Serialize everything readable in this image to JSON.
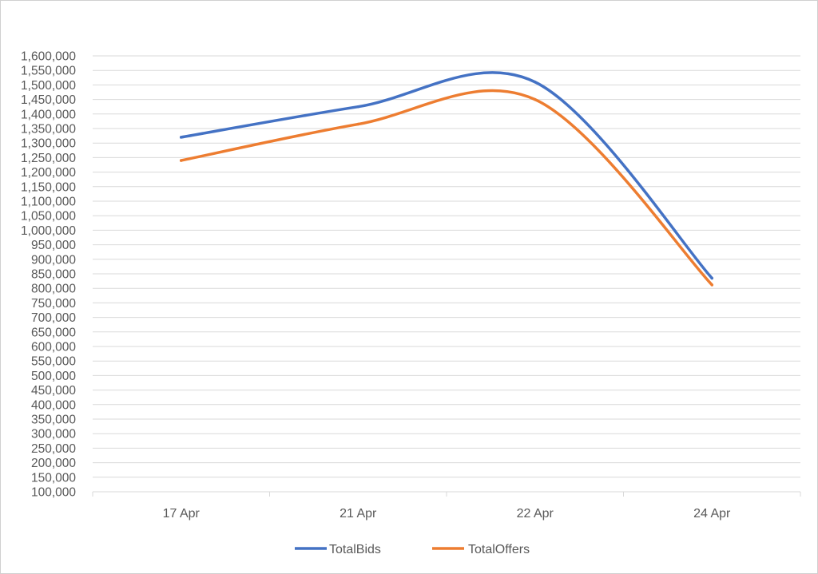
{
  "chart_data": {
    "type": "line",
    "title": "",
    "xlabel": "",
    "ylabel": "",
    "categories": [
      "17 Apr",
      "21 Apr",
      "22 Apr",
      "24 Apr"
    ],
    "series": [
      {
        "name": "TotalBids",
        "color": "#4472C4",
        "values": [
          1320000,
          1425000,
          1510000,
          835000
        ]
      },
      {
        "name": "TotalOffers",
        "color": "#ED7D31",
        "values": [
          1240000,
          1365000,
          1450000,
          812000
        ]
      }
    ],
    "ylim": [
      100000,
      1600000
    ],
    "ytick_step": 50000,
    "grid": true,
    "smooth": true,
    "legend": "bottom"
  }
}
